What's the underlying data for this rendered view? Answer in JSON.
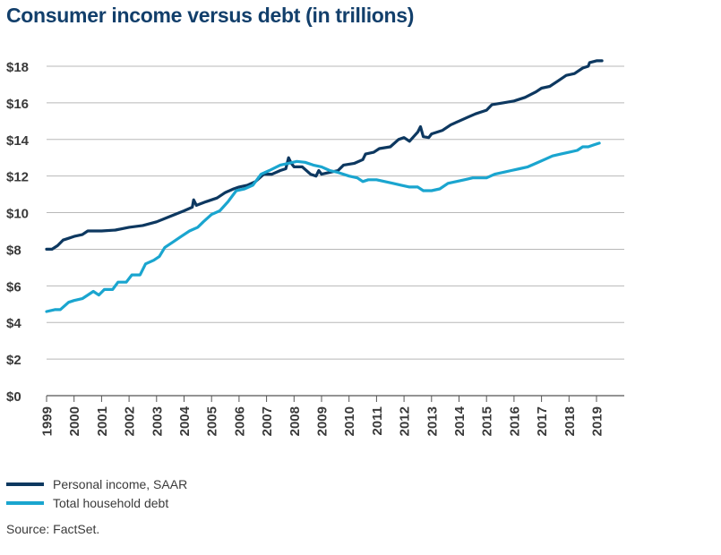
{
  "chart_data": {
    "type": "line",
    "title": "Consumer income versus debt (in trillions)",
    "xlabel": "",
    "ylabel": "",
    "xlim": [
      1999,
      2019.8
    ],
    "ylim": [
      0,
      18
    ],
    "y_ticks": [
      0,
      2,
      4,
      6,
      8,
      10,
      12,
      14,
      16,
      18
    ],
    "y_tick_labels": [
      "$0",
      "$2",
      "$4",
      "$6",
      "$8",
      "$10",
      "$12",
      "$14",
      "$16",
      "$18"
    ],
    "x_ticks": [
      1999,
      2000,
      2001,
      2002,
      2003,
      2004,
      2005,
      2006,
      2007,
      2008,
      2009,
      2010,
      2011,
      2012,
      2013,
      2014,
      2015,
      2016,
      2017,
      2018,
      2019
    ],
    "x_tick_labels": [
      "1999",
      "2000",
      "2001",
      "2002",
      "2003",
      "2004",
      "2005",
      "2006",
      "2007",
      "2008",
      "2009",
      "2010",
      "2011",
      "2012",
      "2013",
      "2014",
      "2015",
      "2016",
      "2017",
      "2018",
      "2019"
    ],
    "grid": true,
    "legend_position": "bottom-left",
    "series": [
      {
        "name": "Personal income, SAAR",
        "color": "#0d3860",
        "points": [
          [
            1999.0,
            8.0
          ],
          [
            1999.2,
            8.0
          ],
          [
            1999.4,
            8.2
          ],
          [
            1999.6,
            8.5
          ],
          [
            1999.8,
            8.6
          ],
          [
            2000.0,
            8.7
          ],
          [
            2000.3,
            8.8
          ],
          [
            2000.5,
            9.0
          ],
          [
            2001.0,
            9.0
          ],
          [
            2001.5,
            9.05
          ],
          [
            2002.0,
            9.2
          ],
          [
            2002.5,
            9.3
          ],
          [
            2003.0,
            9.5
          ],
          [
            2003.5,
            9.8
          ],
          [
            2004.0,
            10.1
          ],
          [
            2004.3,
            10.3
          ],
          [
            2004.35,
            10.7
          ],
          [
            2004.45,
            10.4
          ],
          [
            2004.8,
            10.6
          ],
          [
            2005.2,
            10.8
          ],
          [
            2005.5,
            11.1
          ],
          [
            2005.8,
            11.3
          ],
          [
            2006.0,
            11.4
          ],
          [
            2006.3,
            11.5
          ],
          [
            2006.6,
            11.7
          ],
          [
            2006.9,
            12.1
          ],
          [
            2007.2,
            12.1
          ],
          [
            2007.5,
            12.3
          ],
          [
            2007.7,
            12.4
          ],
          [
            2007.8,
            13.0
          ],
          [
            2007.9,
            12.7
          ],
          [
            2008.0,
            12.5
          ],
          [
            2008.3,
            12.5
          ],
          [
            2008.6,
            12.1
          ],
          [
            2008.8,
            12.0
          ],
          [
            2008.9,
            12.3
          ],
          [
            2009.0,
            12.1
          ],
          [
            2009.3,
            12.2
          ],
          [
            2009.6,
            12.3
          ],
          [
            2009.8,
            12.6
          ],
          [
            2010.2,
            12.7
          ],
          [
            2010.5,
            12.9
          ],
          [
            2010.6,
            13.2
          ],
          [
            2010.9,
            13.3
          ],
          [
            2011.1,
            13.5
          ],
          [
            2011.5,
            13.6
          ],
          [
            2011.8,
            14.0
          ],
          [
            2012.0,
            14.1
          ],
          [
            2012.2,
            13.9
          ],
          [
            2012.5,
            14.4
          ],
          [
            2012.6,
            14.7
          ],
          [
            2012.7,
            14.15
          ],
          [
            2012.9,
            14.1
          ],
          [
            2013.0,
            14.3
          ],
          [
            2013.2,
            14.4
          ],
          [
            2013.4,
            14.5
          ],
          [
            2013.7,
            14.8
          ],
          [
            2014.0,
            15.0
          ],
          [
            2014.3,
            15.2
          ],
          [
            2014.6,
            15.4
          ],
          [
            2015.0,
            15.6
          ],
          [
            2015.2,
            15.9
          ],
          [
            2015.6,
            16.0
          ],
          [
            2016.0,
            16.1
          ],
          [
            2016.4,
            16.3
          ],
          [
            2016.8,
            16.6
          ],
          [
            2017.0,
            16.8
          ],
          [
            2017.3,
            16.9
          ],
          [
            2017.6,
            17.2
          ],
          [
            2017.9,
            17.5
          ],
          [
            2018.2,
            17.6
          ],
          [
            2018.5,
            17.9
          ],
          [
            2018.7,
            18.0
          ],
          [
            2018.75,
            18.2
          ],
          [
            2019.0,
            18.3
          ],
          [
            2019.2,
            18.3
          ]
        ]
      },
      {
        "name": "Total household debt",
        "color": "#1aa5cf",
        "points": [
          [
            1999.0,
            4.6
          ],
          [
            1999.3,
            4.7
          ],
          [
            1999.5,
            4.7
          ],
          [
            1999.8,
            5.1
          ],
          [
            2000.0,
            5.2
          ],
          [
            2000.3,
            5.3
          ],
          [
            2000.5,
            5.5
          ],
          [
            2000.7,
            5.7
          ],
          [
            2000.9,
            5.5
          ],
          [
            2001.1,
            5.8
          ],
          [
            2001.4,
            5.8
          ],
          [
            2001.6,
            6.2
          ],
          [
            2001.9,
            6.2
          ],
          [
            2002.1,
            6.6
          ],
          [
            2002.4,
            6.6
          ],
          [
            2002.6,
            7.2
          ],
          [
            2002.9,
            7.4
          ],
          [
            2003.1,
            7.6
          ],
          [
            2003.3,
            8.1
          ],
          [
            2003.6,
            8.4
          ],
          [
            2003.9,
            8.7
          ],
          [
            2004.2,
            9.0
          ],
          [
            2004.5,
            9.2
          ],
          [
            2004.7,
            9.5
          ],
          [
            2005.0,
            9.9
          ],
          [
            2005.3,
            10.1
          ],
          [
            2005.6,
            10.6
          ],
          [
            2005.9,
            11.2
          ],
          [
            2006.2,
            11.3
          ],
          [
            2006.5,
            11.5
          ],
          [
            2006.8,
            12.1
          ],
          [
            2007.1,
            12.3
          ],
          [
            2007.5,
            12.6
          ],
          [
            2007.8,
            12.7
          ],
          [
            2008.1,
            12.8
          ],
          [
            2008.4,
            12.75
          ],
          [
            2008.7,
            12.6
          ],
          [
            2009.0,
            12.5
          ],
          [
            2009.3,
            12.3
          ],
          [
            2009.6,
            12.2
          ],
          [
            2010.0,
            12.0
          ],
          [
            2010.3,
            11.9
          ],
          [
            2010.5,
            11.7
          ],
          [
            2010.7,
            11.8
          ],
          [
            2011.0,
            11.8
          ],
          [
            2011.3,
            11.7
          ],
          [
            2011.6,
            11.6
          ],
          [
            2011.9,
            11.5
          ],
          [
            2012.2,
            11.4
          ],
          [
            2012.5,
            11.4
          ],
          [
            2012.7,
            11.2
          ],
          [
            2013.0,
            11.2
          ],
          [
            2013.3,
            11.3
          ],
          [
            2013.6,
            11.6
          ],
          [
            2013.9,
            11.7
          ],
          [
            2014.2,
            11.8
          ],
          [
            2014.5,
            11.9
          ],
          [
            2014.8,
            11.9
          ],
          [
            2015.0,
            11.9
          ],
          [
            2015.3,
            12.1
          ],
          [
            2015.6,
            12.2
          ],
          [
            2015.9,
            12.3
          ],
          [
            2016.2,
            12.4
          ],
          [
            2016.5,
            12.5
          ],
          [
            2016.8,
            12.7
          ],
          [
            2017.1,
            12.9
          ],
          [
            2017.4,
            13.1
          ],
          [
            2017.7,
            13.2
          ],
          [
            2018.0,
            13.3
          ],
          [
            2018.3,
            13.4
          ],
          [
            2018.5,
            13.6
          ],
          [
            2018.7,
            13.6
          ],
          [
            2018.9,
            13.7
          ],
          [
            2019.1,
            13.8
          ]
        ]
      }
    ]
  },
  "source": "Source: FactSet."
}
